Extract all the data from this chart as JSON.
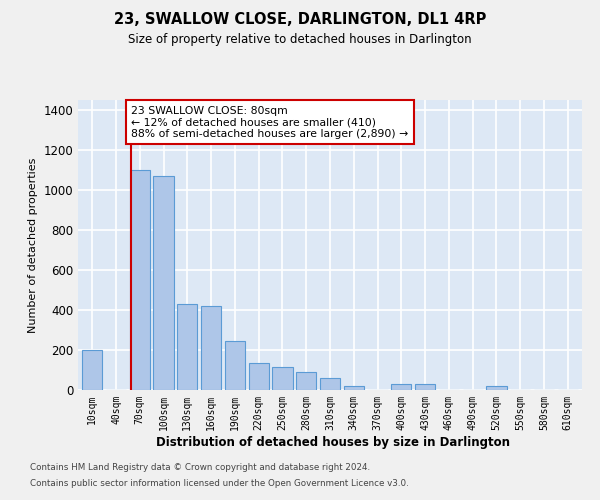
{
  "title": "23, SWALLOW CLOSE, DARLINGTON, DL1 4RP",
  "subtitle": "Size of property relative to detached houses in Darlington",
  "xlabel": "Distribution of detached houses by size in Darlington",
  "ylabel": "Number of detached properties",
  "bar_labels": [
    "10sqm",
    "40sqm",
    "70sqm",
    "100sqm",
    "130sqm",
    "160sqm",
    "190sqm",
    "220sqm",
    "250sqm",
    "280sqm",
    "310sqm",
    "340sqm",
    "370sqm",
    "400sqm",
    "430sqm",
    "460sqm",
    "490sqm",
    "520sqm",
    "550sqm",
    "580sqm",
    "610sqm"
  ],
  "bar_values": [
    200,
    0,
    1100,
    1070,
    430,
    420,
    245,
    135,
    115,
    90,
    60,
    20,
    0,
    30,
    30,
    0,
    0,
    20,
    0,
    0,
    0
  ],
  "bar_color": "#aec6e8",
  "bar_edge_color": "#5b9bd5",
  "bg_color": "#dde8f5",
  "grid_color": "#ffffff",
  "vline_x_index": 2,
  "vline_color": "#cc0000",
  "annotation_text": "23 SWALLOW CLOSE: 80sqm\n← 12% of detached houses are smaller (410)\n88% of semi-detached houses are larger (2,890) →",
  "annotation_box_facecolor": "#ffffff",
  "annotation_box_edgecolor": "#cc0000",
  "ylim": [
    0,
    1450
  ],
  "yticks": [
    0,
    200,
    400,
    600,
    800,
    1000,
    1200,
    1400
  ],
  "fig_facecolor": "#f0f0f0",
  "footer_line1": "Contains HM Land Registry data © Crown copyright and database right 2024.",
  "footer_line2": "Contains public sector information licensed under the Open Government Licence v3.0."
}
